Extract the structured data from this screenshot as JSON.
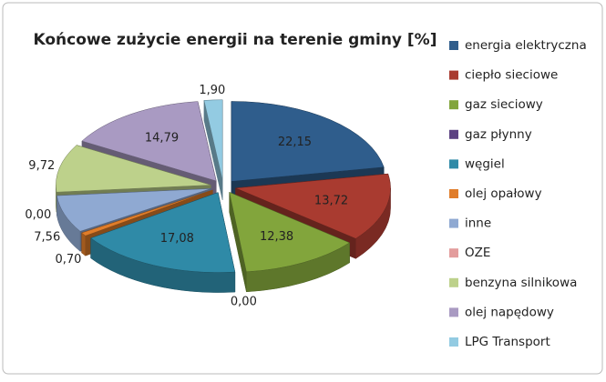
{
  "chart_data": {
    "type": "pie",
    "title": "Końcowe zużycie energii na terenie gminy [%]",
    "categories": [
      "energia elektryczna",
      "ciepło sieciowe",
      "gaz sieciowy",
      "gaz płynny",
      "węgiel",
      "olej opałowy",
      "inne",
      "OZE",
      "benzyna silnikowa",
      "olej napędowy",
      "LPG Transport"
    ],
    "values": [
      22.15,
      13.72,
      12.38,
      0.0,
      17.08,
      0.7,
      7.56,
      0.0,
      9.72,
      14.79,
      1.9
    ],
    "value_labels": [
      "22,15",
      "13,72",
      "12,38",
      "0,00",
      "17,08",
      "0,70",
      "7,56",
      "0,00",
      "9,72",
      "14,79",
      "1,90"
    ],
    "colors": [
      "#2f5d8c",
      "#a93b30",
      "#82a53c",
      "#5c4282",
      "#2f8aa7",
      "#e07d2a",
      "#8fa9d2",
      "#e39c9c",
      "#bdd18b",
      "#a99ac2",
      "#93cbe2"
    ],
    "legend": "right"
  }
}
